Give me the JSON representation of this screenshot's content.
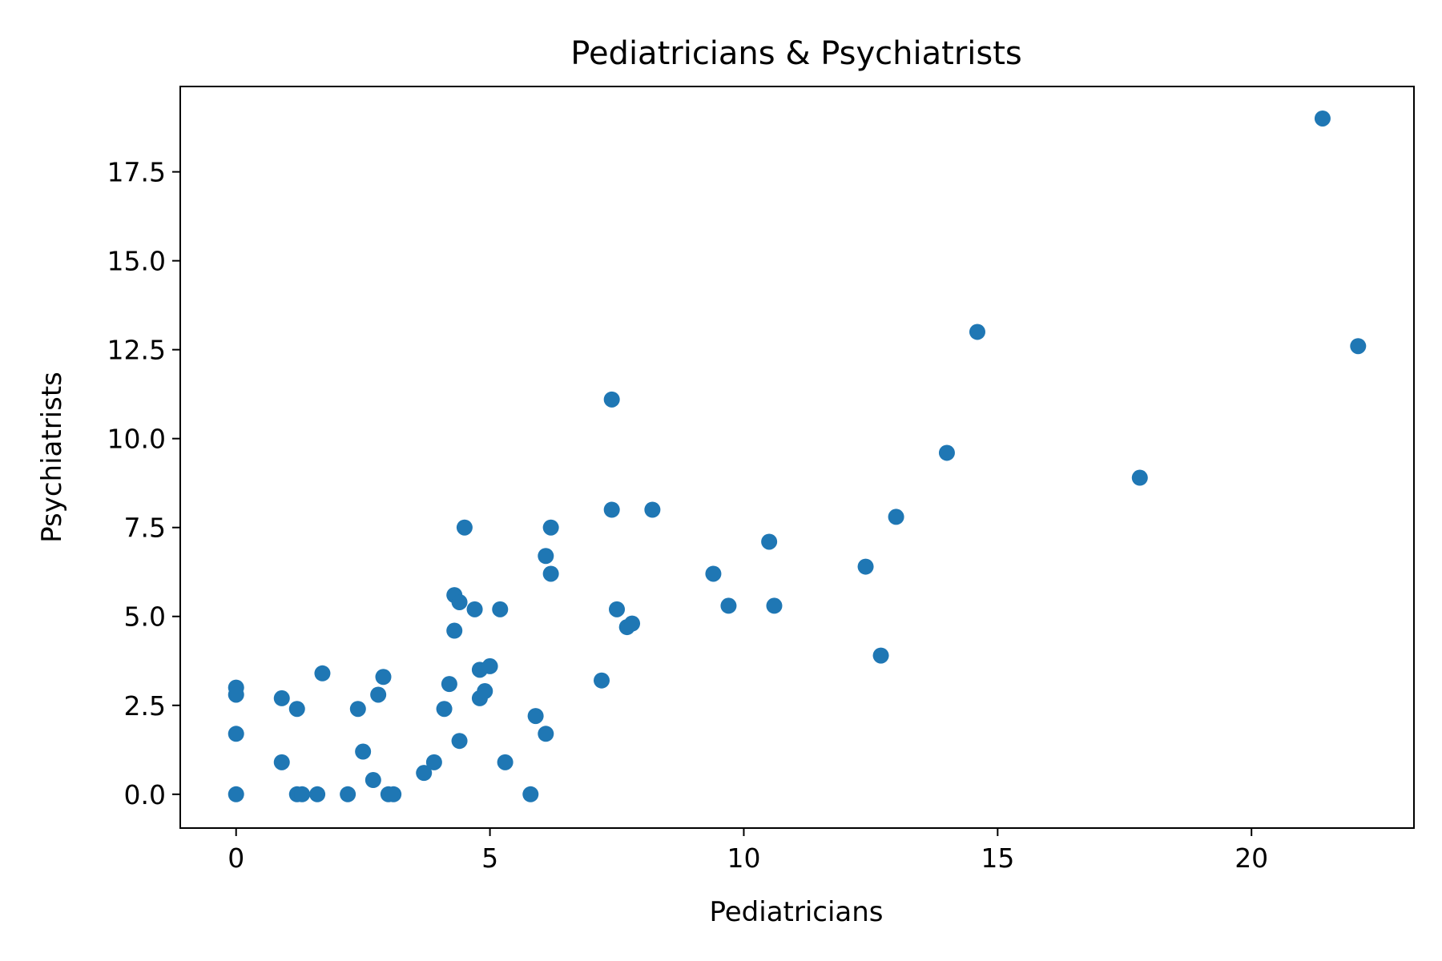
{
  "chart_data": {
    "type": "scatter",
    "title": "Pediatricians & Psychiatrists",
    "xlabel": "Pediatricians",
    "ylabel": "Psychiatrists",
    "xlim": [
      -1.1,
      23.2
    ],
    "ylim": [
      -0.95,
      19.9
    ],
    "xticks": [
      0,
      5,
      10,
      15,
      20
    ],
    "xtick_labels": [
      "0",
      "5",
      "10",
      "15",
      "20"
    ],
    "yticks": [
      0,
      2.5,
      5,
      7.5,
      10,
      12.5,
      15,
      17.5
    ],
    "ytick_labels": [
      "0.0",
      "2.5",
      "5.0",
      "7.5",
      "10.0",
      "12.5",
      "15.0",
      "17.5"
    ],
    "grid": false,
    "marker_color": "#1f77b4",
    "series": [
      {
        "points": [
          [
            0,
            3.0
          ],
          [
            0,
            2.8
          ],
          [
            0,
            1.7
          ],
          [
            0,
            0
          ],
          [
            0.9,
            2.7
          ],
          [
            0.9,
            0.9
          ],
          [
            1.2,
            2.4
          ],
          [
            1.2,
            0
          ],
          [
            1.3,
            0
          ],
          [
            1.6,
            0
          ],
          [
            1.7,
            3.4
          ],
          [
            2.2,
            0
          ],
          [
            2.4,
            2.4
          ],
          [
            2.5,
            1.2
          ],
          [
            2.7,
            0.4
          ],
          [
            2.8,
            2.8
          ],
          [
            2.9,
            3.3
          ],
          [
            3.0,
            0
          ],
          [
            3.1,
            0
          ],
          [
            3.7,
            0.6
          ],
          [
            3.9,
            0.9
          ],
          [
            4.1,
            2.4
          ],
          [
            4.2,
            3.1
          ],
          [
            4.3,
            5.6
          ],
          [
            4.3,
            4.6
          ],
          [
            4.4,
            5.4
          ],
          [
            4.4,
            1.5
          ],
          [
            4.5,
            7.5
          ],
          [
            4.7,
            5.2
          ],
          [
            4.8,
            3.5
          ],
          [
            4.8,
            2.7
          ],
          [
            4.9,
            2.9
          ],
          [
            5.0,
            3.6
          ],
          [
            5.2,
            5.2
          ],
          [
            5.3,
            0.9
          ],
          [
            5.8,
            0
          ],
          [
            5.9,
            2.2
          ],
          [
            6.1,
            6.7
          ],
          [
            6.1,
            1.7
          ],
          [
            6.2,
            7.5
          ],
          [
            6.2,
            6.2
          ],
          [
            7.2,
            3.2
          ],
          [
            7.4,
            11.1
          ],
          [
            7.4,
            8.0
          ],
          [
            7.5,
            5.2
          ],
          [
            7.7,
            4.7
          ],
          [
            7.8,
            4.8
          ],
          [
            8.2,
            8.0
          ],
          [
            9.4,
            6.2
          ],
          [
            9.7,
            5.3
          ],
          [
            10.5,
            7.1
          ],
          [
            10.6,
            5.3
          ],
          [
            12.4,
            6.4
          ],
          [
            12.7,
            3.9
          ],
          [
            13.0,
            7.8
          ],
          [
            14.0,
            9.6
          ],
          [
            14.6,
            13.0
          ],
          [
            17.8,
            8.9
          ],
          [
            21.4,
            19.0
          ],
          [
            22.1,
            12.6
          ]
        ]
      }
    ]
  }
}
